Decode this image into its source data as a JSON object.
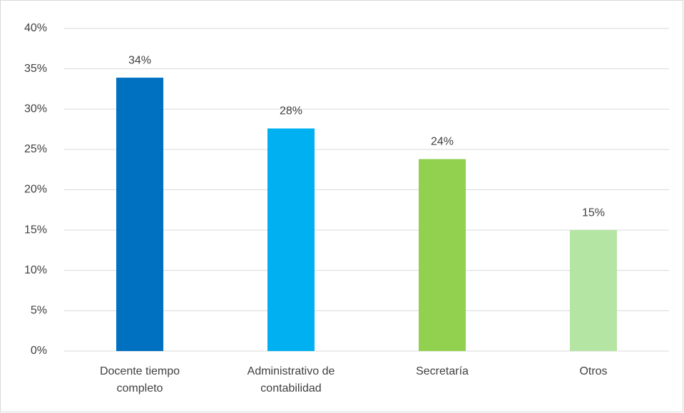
{
  "chart_data": {
    "type": "bar",
    "categories": [
      "Docente tiempo completo",
      "Administrativo de contabilidad",
      "Secretaría",
      "Otros"
    ],
    "values": [
      33.9,
      27.6,
      23.8,
      15.0
    ],
    "value_labels": [
      "34%",
      "28%",
      "24%",
      "15%"
    ],
    "colors": [
      "#0070c0",
      "#00b0f0",
      "#92d050",
      "#b4e5a2"
    ],
    "ylim": [
      0,
      40
    ],
    "yticks": [
      {
        "value": 0,
        "label": "0%"
      },
      {
        "value": 5,
        "label": "5%"
      },
      {
        "value": 10,
        "label": "10%"
      },
      {
        "value": 15,
        "label": "15%"
      },
      {
        "value": 20,
        "label": "20%"
      },
      {
        "value": 25,
        "label": "25%"
      },
      {
        "value": 30,
        "label": "30%"
      },
      {
        "value": 35,
        "label": "35%"
      },
      {
        "value": 40,
        "label": "40%"
      }
    ],
    "grid": true
  }
}
